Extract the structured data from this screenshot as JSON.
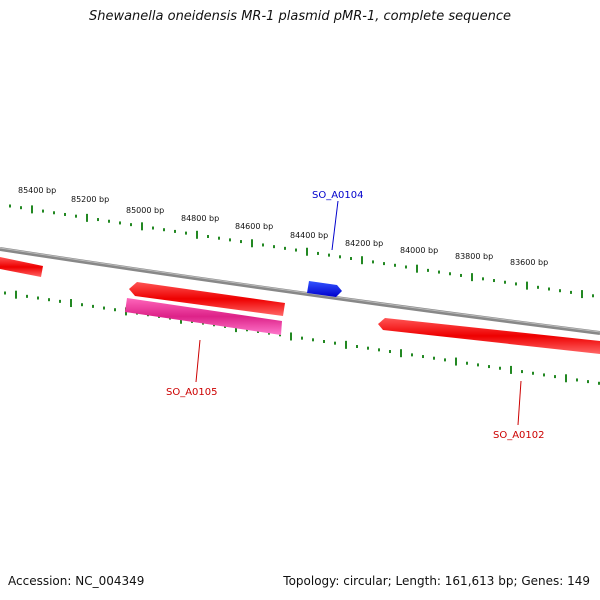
{
  "title": "Shewanella oneidensis MR-1 plasmid pMR-1, complete sequence",
  "footer": {
    "accession": "Accession: NC_004349",
    "topology": "Topology: circular; Length: 161,613 bp; Genes: 149"
  },
  "bp_labels": [
    "85400 bp",
    "85200 bp",
    "85000 bp",
    "84800 bp",
    "84600 bp",
    "84400 bp",
    "84200 bp",
    "84000 bp",
    "83800 bp",
    "83600 bp"
  ],
  "genes": [
    {
      "id": "SO_A0104",
      "color": "#0000cc",
      "label_color": "#0000cc"
    },
    {
      "id": "SO_A0105",
      "color": "#ee1111",
      "label_color": "#cc0000"
    },
    {
      "id": "SO_A0102",
      "color": "#ee1111",
      "label_color": "#cc0000"
    }
  ],
  "colors": {
    "backbone": "#888888",
    "tick": "#228822",
    "forward_gene": "#ee1111",
    "reverse_gene": "#ee1111",
    "pink_gene": "#ee3399",
    "blue_gene": "#0000ee"
  }
}
